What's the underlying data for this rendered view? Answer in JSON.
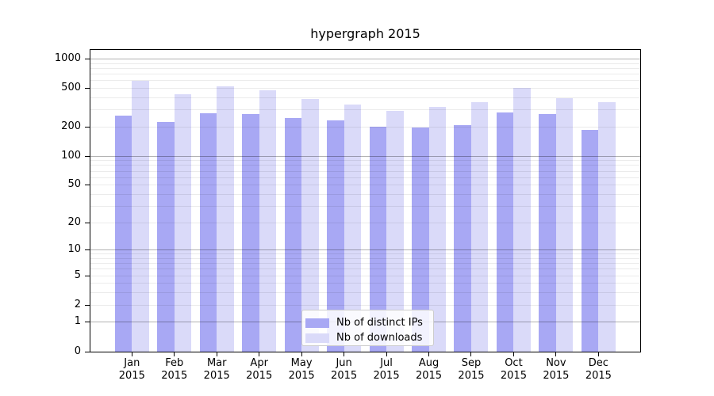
{
  "title": "hypergraph 2015",
  "chart_data": {
    "type": "bar",
    "title": "hypergraph 2015",
    "categories": [
      "Jan",
      "Feb",
      "Mar",
      "Apr",
      "May",
      "Jun",
      "Jul",
      "Aug",
      "Sep",
      "Oct",
      "Nov",
      "Dec"
    ],
    "x_year": "2015",
    "series": [
      {
        "name": "Nb of distinct IPs",
        "color": "#a8a8f4",
        "values": [
          259,
          222,
          273,
          269,
          247,
          230,
          198,
          196,
          208,
          278,
          267,
          185
        ]
      },
      {
        "name": "Nb of downloads",
        "color": "#dadaf9",
        "values": [
          596,
          434,
          521,
          477,
          386,
          336,
          291,
          321,
          360,
          503,
          391,
          357
        ]
      }
    ],
    "y_scale": "log10(v+1)",
    "y_ticks": [
      1000,
      500,
      200,
      100,
      50,
      20,
      10,
      5,
      2,
      1,
      0
    ],
    "ylim": [
      0,
      1250
    ],
    "grid": "on",
    "legend_position": "lower center"
  }
}
